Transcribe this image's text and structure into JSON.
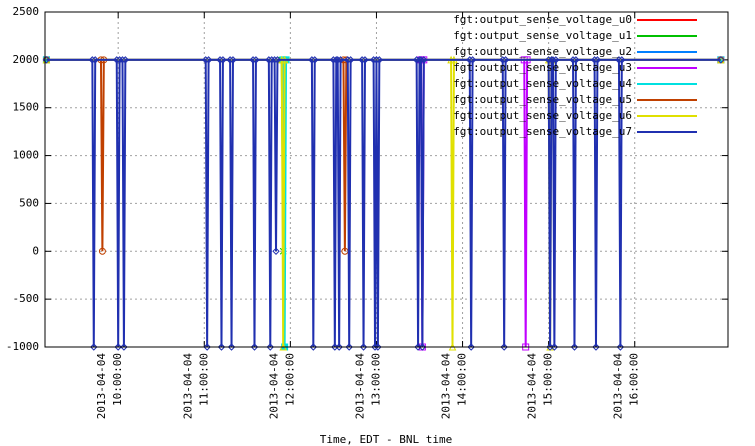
{
  "chart_data": {
    "type": "line",
    "xlabel": "Time, EDT - BNL time",
    "xlim": [
      "2013-04-04 09:09:00",
      "2013-04-04 17:05:00"
    ],
    "xticks": [
      "2013-04-04 10:00:00",
      "2013-04-04 11:00:00",
      "2013-04-04 12:00:00",
      "2013-04-04 13:00:00",
      "2013-04-04 14:00:00",
      "2013-04-04 15:00:00",
      "2013-04-04 16:00:00"
    ],
    "ylim": [
      -1000,
      2500
    ],
    "yticks": [
      -1000,
      -500,
      0,
      500,
      1000,
      1500,
      2000,
      2500
    ],
    "grid": true,
    "legend": "upper right",
    "series": [
      {
        "name": "fgt:output_sense_voltage_u0",
        "color": "#ff0000",
        "x": [
          "2013-04-04 09:10:00",
          "2013-04-04 17:00:00"
        ],
        "values": [
          2000,
          2000
        ]
      },
      {
        "name": "fgt:output_sense_voltage_u1",
        "color": "#00c000",
        "x": [
          "2013-04-04 09:10:00",
          "2013-04-04 11:54:00",
          "2013-04-04 11:55:00",
          "2013-04-04 11:56:00",
          "2013-04-04 17:00:00"
        ],
        "values": [
          2000,
          2000,
          0,
          2000,
          2000
        ]
      },
      {
        "name": "fgt:output_sense_voltage_u2",
        "color": "#0080ff",
        "x": [
          "2013-04-04 09:10:00",
          "2013-04-04 17:00:00"
        ],
        "values": [
          2000,
          2000
        ]
      },
      {
        "name": "fgt:output_sense_voltage_u3",
        "color": "#c000ff",
        "x": [
          "2013-04-04 09:10:00",
          "2013-04-04 13:31:00",
          "2013-04-04 13:32:00",
          "2013-04-04 13:33:00",
          "2013-04-04 14:43:00",
          "2013-04-04 14:44:00",
          "2013-04-04 14:45:00",
          "2013-04-04 17:00:00"
        ],
        "values": [
          2000,
          2000,
          -1000,
          2000,
          2000,
          -1000,
          2000,
          2000
        ]
      },
      {
        "name": "fgt:output_sense_voltage_u4",
        "color": "#00e0e0",
        "x": [
          "2013-04-04 09:10:00",
          "2013-04-04 11:55:00",
          "2013-04-04 11:56:00",
          "2013-04-04 11:57:00",
          "2013-04-04 17:00:00"
        ],
        "values": [
          2000,
          2000,
          -1000,
          2000,
          2000
        ]
      },
      {
        "name": "fgt:output_sense_voltage_u5",
        "color": "#c04000",
        "x": [
          "2013-04-04 09:10:00",
          "2013-04-04 09:48:00",
          "2013-04-04 09:49:00",
          "2013-04-04 09:50:00",
          "2013-04-04 12:37:00",
          "2013-04-04 12:38:00",
          "2013-04-04 12:39:00",
          "2013-04-04 17:00:00"
        ],
        "values": [
          2000,
          2000,
          0,
          2000,
          2000,
          0,
          2000,
          2000
        ]
      },
      {
        "name": "fgt:output_sense_voltage_u6",
        "color": "#e0e000",
        "x": [
          "2013-04-04 09:10:00",
          "2013-04-04 11:54:00",
          "2013-04-04 11:55:00",
          "2013-04-04 11:56:00",
          "2013-04-04 13:52:00",
          "2013-04-04 13:53:00",
          "2013-04-04 13:54:00",
          "2013-04-04 15:00:00",
          "2013-04-04 15:01:00",
          "2013-04-04 15:02:00",
          "2013-04-04 17:00:00"
        ],
        "values": [
          2000,
          2000,
          -1000,
          2000,
          2000,
          -1000,
          2000,
          2000,
          -1000,
          2000,
          2000
        ]
      },
      {
        "name": "fgt:output_sense_voltage_u7",
        "color": "#2030b0",
        "x": [
          "2013-04-04 09:10:00",
          "2013-04-04 09:42:00",
          "2013-04-04 09:43:00",
          "2013-04-04 09:44:00",
          "2013-04-04 09:59:00",
          "2013-04-04 10:00:00",
          "2013-04-04 10:01:00",
          "2013-04-04 10:03:00",
          "2013-04-04 10:04:00",
          "2013-04-04 10:05:00",
          "2013-04-04 11:01:00",
          "2013-04-04 11:02:00",
          "2013-04-04 11:03:00",
          "2013-04-04 11:11:00",
          "2013-04-04 11:12:00",
          "2013-04-04 11:13:00",
          "2013-04-04 11:18:00",
          "2013-04-04 11:19:00",
          "2013-04-04 11:20:00",
          "2013-04-04 11:34:00",
          "2013-04-04 11:35:00",
          "2013-04-04 11:36:00",
          "2013-04-04 11:45:00",
          "2013-04-04 11:46:00",
          "2013-04-04 11:47:00",
          "2013-04-04 11:49:00",
          "2013-04-04 11:50:00",
          "2013-04-04 11:51:00",
          "2013-04-04 12:15:00",
          "2013-04-04 12:16:00",
          "2013-04-04 12:17:00",
          "2013-04-04 12:30:00",
          "2013-04-04 12:31:00",
          "2013-04-04 12:32:00",
          "2013-04-04 12:33:00",
          "2013-04-04 12:34:00",
          "2013-04-04 12:35:00",
          "2013-04-04 12:40:00",
          "2013-04-04 12:41:00",
          "2013-04-04 12:42:00",
          "2013-04-04 12:50:00",
          "2013-04-04 12:51:00",
          "2013-04-04 12:52:00",
          "2013-04-04 12:58:00",
          "2013-04-04 12:59:00",
          "2013-04-04 13:00:00",
          "2013-04-04 13:00:00",
          "2013-04-04 13:01:00",
          "2013-04-04 13:02:00",
          "2013-04-04 13:28:00",
          "2013-04-04 13:29:00",
          "2013-04-04 13:30:00",
          "2013-04-04 13:31:00",
          "2013-04-04 13:32:00",
          "2013-04-04 13:33:00",
          "2013-04-04 14:05:00",
          "2013-04-04 14:06:00",
          "2013-04-04 14:07:00",
          "2013-04-04 14:28:00",
          "2013-04-04 14:29:00",
          "2013-04-04 14:30:00",
          "2013-04-04 15:00:00",
          "2013-04-04 15:01:00",
          "2013-04-04 15:02:00",
          "2013-04-04 15:03:00",
          "2013-04-04 15:04:00",
          "2013-04-04 15:05:00",
          "2013-04-04 15:17:00",
          "2013-04-04 15:18:00",
          "2013-04-04 15:19:00",
          "2013-04-04 15:32:00",
          "2013-04-04 15:33:00",
          "2013-04-04 15:34:00",
          "2013-04-04 15:49:00",
          "2013-04-04 15:50:00",
          "2013-04-04 15:51:00",
          "2013-04-04 17:00:00"
        ],
        "values": [
          2000,
          2000,
          -1000,
          2000,
          2000,
          -1000,
          2000,
          2000,
          -1000,
          2000,
          2000,
          -1000,
          2000,
          2000,
          -1000,
          2000,
          2000,
          -1000,
          2000,
          2000,
          -1000,
          2000,
          2000,
          -1000,
          2000,
          2000,
          0,
          2000,
          2000,
          -1000,
          2000,
          2000,
          -1000,
          2000,
          2000,
          -1000,
          2000,
          2000,
          -1000,
          2000,
          2000,
          -1000,
          2000,
          2000,
          -1000,
          2000,
          2000,
          -1000,
          2000,
          2000,
          -1000,
          2000,
          2000,
          -1000,
          2000,
          2000,
          -1000,
          2000,
          2000,
          -1000,
          2000,
          2000,
          -1000,
          2000,
          2000,
          -1000,
          2000,
          2000,
          -1000,
          2000,
          2000,
          -1000,
          2000,
          2000,
          -1000,
          2000,
          2000
        ]
      }
    ]
  }
}
